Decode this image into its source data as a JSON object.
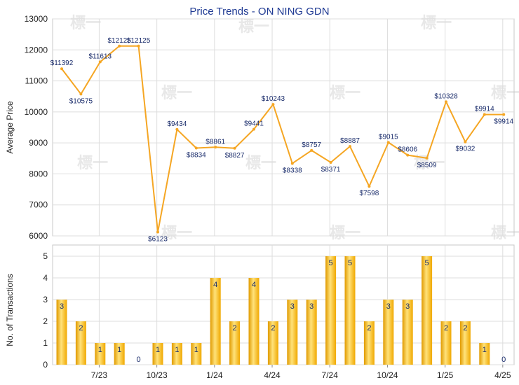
{
  "chart_data": [
    {
      "type": "line",
      "title": "Price Trends - ON NING GDN",
      "ylabel": "Average Price",
      "ylim": [
        6000,
        13000
      ],
      "yticks": [
        6000,
        7000,
        8000,
        9000,
        10000,
        11000,
        12000,
        13000
      ],
      "grid": true,
      "line_color": "#f5a623",
      "series": [
        {
          "values": [
            11392,
            10575,
            11613,
            12125,
            12125,
            6123,
            9434,
            8834,
            8861,
            8827,
            9441,
            10243,
            8338,
            8757,
            8371,
            8887,
            7598,
            9015,
            8606,
            8509,
            10328,
            9032,
            9914,
            9914
          ],
          "labels": [
            "$11392",
            "$10575",
            "$11613",
            "$12125",
            "$12125",
            "$6123",
            "$9434",
            "$8834",
            "$8861",
            "$8827",
            "$9441",
            "$10243",
            "$8338",
            "$8757",
            "$8371",
            "$8887",
            "$7598",
            "$9015",
            "$8606",
            "$8509",
            "$10328",
            "$9032",
            "$9914",
            "$9914"
          ]
        }
      ]
    },
    {
      "type": "bar",
      "ylabel": "No. of Transactions",
      "ylim": [
        0,
        5
      ],
      "yticks": [
        0,
        1,
        2,
        3,
        4,
        5
      ],
      "grid": true,
      "bar_color": "#f5b800",
      "values": [
        3,
        2,
        1,
        1,
        0,
        1,
        1,
        1,
        4,
        2,
        4,
        2,
        3,
        3,
        5,
        5,
        2,
        3,
        3,
        5,
        2,
        2,
        1,
        0
      ],
      "xtick_labels": [
        "7/23",
        "10/23",
        "1/24",
        "4/24",
        "7/24",
        "10/24",
        "1/25",
        "4/25"
      ]
    }
  ],
  "watermark": "標一"
}
